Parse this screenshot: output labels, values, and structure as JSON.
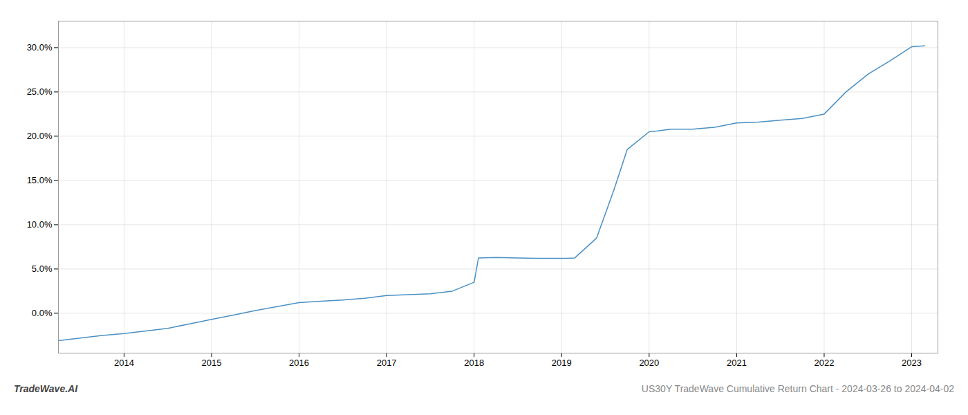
{
  "chart_data": {
    "type": "line",
    "x": [
      2013.25,
      2013.5,
      2013.75,
      2014.0,
      2014.25,
      2014.5,
      2014.75,
      2015.0,
      2015.25,
      2015.5,
      2015.75,
      2016.0,
      2016.25,
      2016.5,
      2016.75,
      2017.0,
      2017.25,
      2017.5,
      2017.75,
      2018.0,
      2018.05,
      2018.25,
      2018.5,
      2018.75,
      2019.0,
      2019.05,
      2019.15,
      2019.4,
      2019.6,
      2019.75,
      2020.0,
      2020.1,
      2020.25,
      2020.5,
      2020.75,
      2021.0,
      2021.25,
      2021.5,
      2021.75,
      2022.0,
      2022.25,
      2022.5,
      2022.75,
      2023.0,
      2023.15
    ],
    "values": [
      -3.1,
      -2.8,
      -2.5,
      -2.3,
      -2.0,
      -1.7,
      -1.2,
      -0.7,
      -0.2,
      0.3,
      0.75,
      1.2,
      1.35,
      1.5,
      1.7,
      2.0,
      2.1,
      2.2,
      2.5,
      3.5,
      6.25,
      6.3,
      6.25,
      6.2,
      6.2,
      6.2,
      6.25,
      8.5,
      14.0,
      18.5,
      20.5,
      20.6,
      20.8,
      20.8,
      21.0,
      21.5,
      21.6,
      21.8,
      22.0,
      22.5,
      25.0,
      27.0,
      28.5,
      30.1,
      30.2
    ],
    "color": "#4a90c4",
    "xlim": [
      2013.25,
      2023.3
    ],
    "xticks": [
      2014,
      2015,
      2016,
      2017,
      2018,
      2019,
      2020,
      2021,
      2022,
      2023
    ],
    "ylim": [
      -4.5,
      33.0
    ],
    "yticks": [
      {
        "value": 0,
        "label": "0.0%"
      },
      {
        "value": 5,
        "label": "5.0%"
      },
      {
        "value": 10,
        "label": "10.0%"
      },
      {
        "value": 15,
        "label": "15.0%"
      },
      {
        "value": 20,
        "label": "20.0%"
      },
      {
        "value": 25,
        "label": "25.0%"
      },
      {
        "value": 30,
        "label": "30.0%"
      }
    ],
    "grid": true,
    "annotations": [
      "TradeWave.AI",
      "US30Y TradeWave Cumulative Return Chart - 2024-03-26 to 2024-04-02"
    ]
  }
}
